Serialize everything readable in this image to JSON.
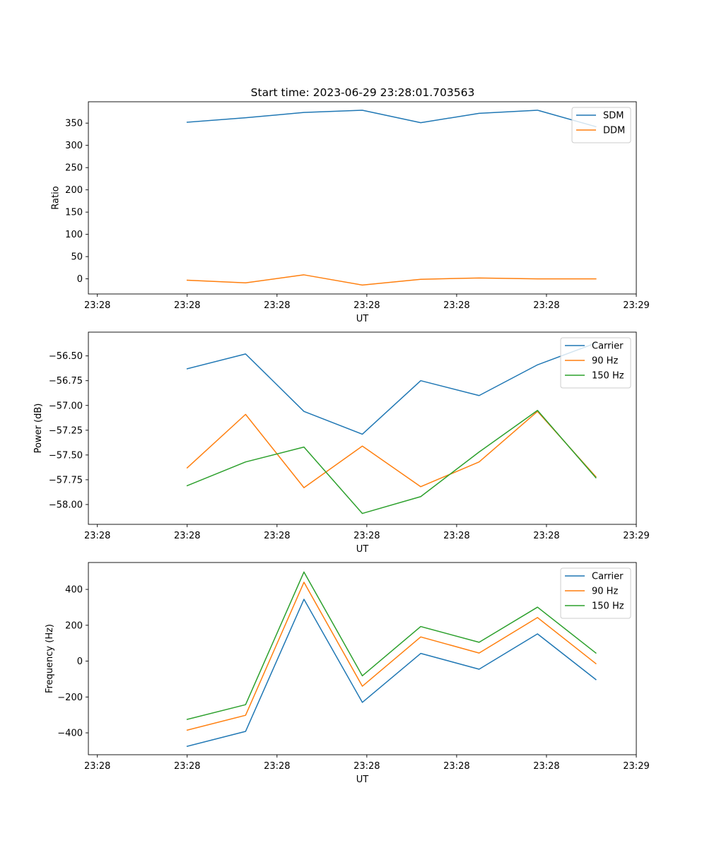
{
  "figure": {
    "title": "Start time: 2023-06-29 23:28:01.703563"
  },
  "colors": {
    "blue": "#1f77b4",
    "orange": "#ff7f0e",
    "green": "#2ca02c"
  },
  "chart_data": [
    {
      "type": "line",
      "title": "Start time: 2023-06-29 23:28:01.703563",
      "xlabel": "UT",
      "ylabel": "Ratio",
      "x": [
        1.5,
        2.15,
        2.8,
        3.45,
        4.1,
        4.75,
        5.4,
        6.05
      ],
      "xlim": [
        0.4,
        6.5
      ],
      "xticks": [
        0.5,
        1.5,
        2.5,
        3.5,
        4.5,
        5.5,
        6.5
      ],
      "xtick_labels": [
        "23:28",
        "23:28",
        "23:28",
        "23:28",
        "23:28",
        "23:28",
        "23:29"
      ],
      "ylim": [
        -34,
        398
      ],
      "yticks": [
        0,
        50,
        100,
        150,
        200,
        250,
        300,
        350
      ],
      "ytick_labels": [
        "0",
        "50",
        "100",
        "150",
        "200",
        "250",
        "300",
        "350"
      ],
      "legend_position": "top-right",
      "grid": false,
      "series": [
        {
          "name": "SDM",
          "color": "#1f77b4",
          "values": [
            352,
            362,
            374,
            379,
            351,
            372,
            379,
            342
          ]
        },
        {
          "name": "DDM",
          "color": "#ff7f0e",
          "values": [
            -3,
            -9,
            9,
            -14,
            -1,
            2,
            0,
            0
          ]
        }
      ]
    },
    {
      "type": "line",
      "title": "",
      "xlabel": "UT",
      "ylabel": "Power (dB)",
      "x": [
        1.5,
        2.15,
        2.8,
        3.45,
        4.1,
        4.75,
        5.4,
        6.05
      ],
      "xlim": [
        0.4,
        6.5
      ],
      "xticks": [
        0.5,
        1.5,
        2.5,
        3.5,
        4.5,
        5.5,
        6.5
      ],
      "xtick_labels": [
        "23:28",
        "23:28",
        "23:28",
        "23:28",
        "23:28",
        "23:28",
        "23:29"
      ],
      "ylim": [
        -58.2,
        -56.26
      ],
      "yticks": [
        -58.0,
        -57.75,
        -57.5,
        -57.25,
        -57.0,
        -56.75,
        -56.5
      ],
      "ytick_labels": [
        "−58.00",
        "−57.75",
        "−57.50",
        "−57.25",
        "−57.00",
        "−56.75",
        "−56.50"
      ],
      "legend_position": "top-right",
      "grid": false,
      "series": [
        {
          "name": "Carrier",
          "color": "#1f77b4",
          "values": [
            -56.63,
            -56.48,
            -57.06,
            -57.29,
            -56.75,
            -56.9,
            -56.59,
            -56.37
          ]
        },
        {
          "name": "90 Hz",
          "color": "#ff7f0e",
          "values": [
            -57.63,
            -57.09,
            -57.83,
            -57.41,
            -57.82,
            -57.57,
            -57.06,
            -57.72
          ]
        },
        {
          "name": "150 Hz",
          "color": "#2ca02c",
          "values": [
            -57.81,
            -57.57,
            -57.42,
            -58.09,
            -57.92,
            -57.47,
            -57.05,
            -57.73
          ]
        }
      ]
    },
    {
      "type": "line",
      "title": "",
      "xlabel": "UT",
      "ylabel": "Frequency (Hz)",
      "x": [
        1.5,
        2.15,
        2.8,
        3.45,
        4.1,
        4.75,
        5.4,
        6.05
      ],
      "xlim": [
        0.4,
        6.5
      ],
      "xticks": [
        0.5,
        1.5,
        2.5,
        3.5,
        4.5,
        5.5,
        6.5
      ],
      "xtick_labels": [
        "23:28",
        "23:28",
        "23:28",
        "23:28",
        "23:28",
        "23:28",
        "23:29"
      ],
      "ylim": [
        -522,
        550
      ],
      "yticks": [
        -400,
        -200,
        0,
        200,
        400
      ],
      "ytick_labels": [
        "−400",
        "−200",
        "0",
        "200",
        "400"
      ],
      "legend_position": "top-right",
      "grid": false,
      "series": [
        {
          "name": "Carrier",
          "color": "#1f77b4",
          "values": [
            -475,
            -392,
            345,
            -230,
            43,
            -45,
            152,
            -103
          ]
        },
        {
          "name": "90 Hz",
          "color": "#ff7f0e",
          "values": [
            -385,
            -302,
            440,
            -140,
            135,
            45,
            243,
            -14
          ]
        },
        {
          "name": "150 Hz",
          "color": "#2ca02c",
          "values": [
            -325,
            -243,
            497,
            -82,
            193,
            105,
            301,
            45
          ]
        }
      ]
    }
  ]
}
